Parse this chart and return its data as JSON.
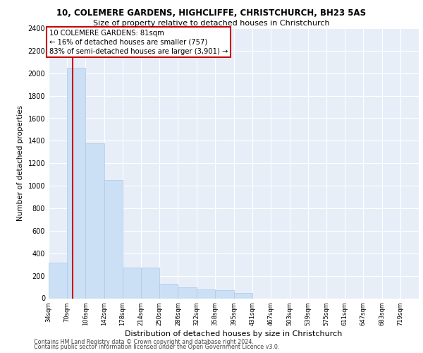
{
  "title_line1": "10, COLEMERE GARDENS, HIGHCLIFFE, CHRISTCHURCH, BH23 5AS",
  "title_line2": "Size of property relative to detached houses in Christchurch",
  "xlabel": "Distribution of detached houses by size in Christchurch",
  "ylabel": "Number of detached properties",
  "footer_line1": "Contains HM Land Registry data © Crown copyright and database right 2024.",
  "footer_line2": "Contains public sector information licensed under the Open Government Licence v3.0.",
  "annotation_line1": "10 COLEMERE GARDENS: 81sqm",
  "annotation_line2": "← 16% of detached houses are smaller (757)",
  "annotation_line3": "83% of semi-detached houses are larger (3,901) →",
  "property_sqm": 81,
  "bar_color": "#cce0f5",
  "bar_edgecolor": "#aac8e8",
  "vline_color": "#cc0000",
  "annotation_box_edgecolor": "#cc0000",
  "ylim": [
    0,
    2400
  ],
  "yticks": [
    0,
    200,
    400,
    600,
    800,
    1000,
    1200,
    1400,
    1600,
    1800,
    2000,
    2200,
    2400
  ],
  "bin_edges": [
    34,
    70,
    106,
    142,
    178,
    214,
    250,
    286,
    322,
    358,
    395,
    431,
    467,
    503,
    539,
    575,
    611,
    647,
    683,
    719,
    755
  ],
  "bin_counts": [
    320,
    2050,
    1380,
    1050,
    270,
    270,
    130,
    100,
    80,
    70,
    50,
    0,
    0,
    0,
    0,
    0,
    0,
    0,
    0,
    0
  ],
  "background_color": "#e8eef8",
  "grid_color": "#ffffff"
}
